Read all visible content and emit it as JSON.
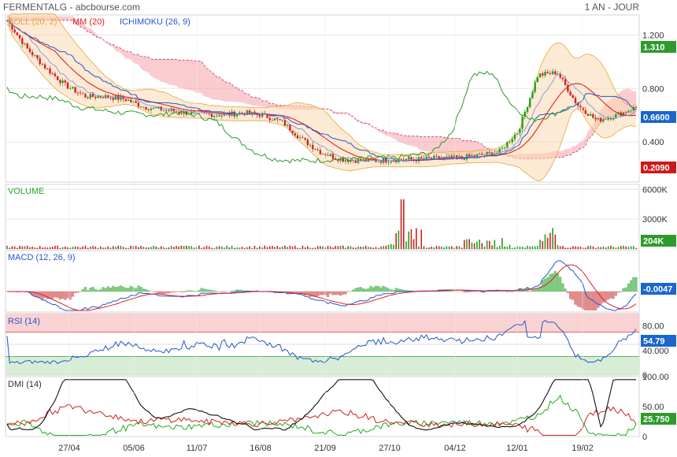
{
  "header": {
    "symbol": "FERMENTALG",
    "source": "abcbourse.com",
    "separator": " - ",
    "period": "1 AN - JOUR"
  },
  "chart_data": [
    {
      "type": "candlestick",
      "panel": "price",
      "legend": [
        {
          "label": "BOLL (20, 2)",
          "color": "#e6a63c"
        },
        {
          "label": "MM (20)",
          "color": "#e02020"
        },
        {
          "label": "ICHIMOKU (26, 9)",
          "color": "#2255cc"
        }
      ],
      "y_ticks": [
        "1.200",
        "0.800",
        "0.400"
      ],
      "y_tick_values": [
        1.2,
        0.8,
        0.4
      ],
      "ylim": [
        0.1,
        1.35
      ],
      "badges": [
        {
          "value": "1.310",
          "color": "#2e9a2e"
        },
        {
          "value": "0.6600",
          "color": "#1a66cc"
        },
        {
          "value": "0.2090",
          "color": "#cc1a1a"
        }
      ],
      "close_anchors": [
        1.31,
        1.1,
        0.95,
        0.82,
        0.74,
        0.74,
        0.72,
        0.66,
        0.64,
        0.62,
        0.61,
        0.6,
        0.62,
        0.6,
        0.55,
        0.42,
        0.32,
        0.27,
        0.26,
        0.26,
        0.27,
        0.27,
        0.28,
        0.28,
        0.3,
        0.32,
        0.48,
        0.9,
        0.92,
        0.68,
        0.56,
        0.6,
        0.66
      ]
    },
    {
      "type": "bar",
      "panel": "volume",
      "legend": [
        {
          "label": "VOLUME",
          "color": "#22aa22"
        }
      ],
      "y_ticks": [
        "6000K",
        "3000K"
      ],
      "y_tick_values": [
        6000,
        3000
      ],
      "ylim": [
        0,
        6500
      ],
      "unit": "K",
      "badges": [
        {
          "value": "204K",
          "color": "#2e9a2e"
        }
      ]
    },
    {
      "type": "line",
      "panel": "macd",
      "legend": [
        {
          "label": "MACD (12, 26, 9)",
          "color": "#2255cc"
        }
      ],
      "badges": [
        {
          "value": "-0.0047",
          "color": "#1a66cc"
        }
      ]
    },
    {
      "type": "line",
      "panel": "rsi",
      "legend": [
        {
          "label": "RSI (14)",
          "color": "#2255cc"
        }
      ],
      "y_ticks": [
        "80.00",
        "40.000",
        "0"
      ],
      "y_tick_values": [
        80,
        40,
        0
      ],
      "ylim": [
        0,
        100
      ],
      "bands": {
        "overbought": 70,
        "oversold": 30
      },
      "badges": [
        {
          "value": "54.79",
          "color": "#1a66cc"
        }
      ]
    },
    {
      "type": "line",
      "panel": "dmi",
      "legend": [
        {
          "label": "DMI (14)",
          "color": "#22aa22"
        }
      ],
      "y_ticks": [
        "100.00",
        "50.00",
        "0"
      ],
      "y_tick_values": [
        100,
        50,
        0
      ],
      "ylim": [
        0,
        100
      ],
      "badges": [
        {
          "value": "25.750",
          "color": "#2e9a2e"
        }
      ]
    }
  ],
  "x_axis": {
    "labels": [
      "27/04",
      "05/06",
      "11/07",
      "16/08",
      "21/09",
      "27/10",
      "04/12",
      "12/01",
      "19/02"
    ]
  }
}
